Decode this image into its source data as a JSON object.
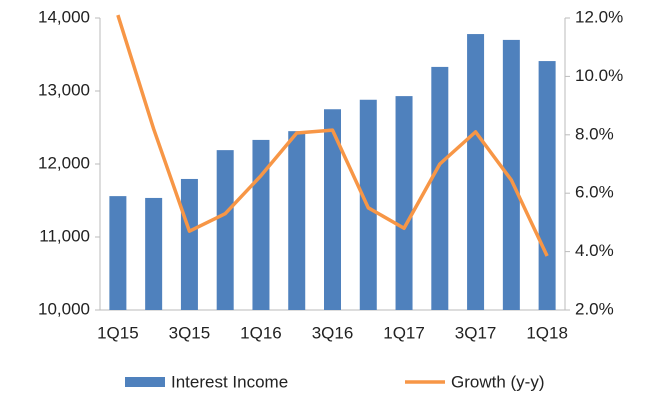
{
  "chart_data": {
    "type": "bar_line",
    "categories": [
      "1Q15",
      null,
      "3Q15",
      null,
      "1Q16",
      null,
      "3Q16",
      null,
      "1Q17",
      null,
      "3Q17",
      null,
      "1Q18"
    ],
    "series": [
      {
        "name": "Interest Income",
        "type": "bar",
        "color": "#4f81bd",
        "values": [
          11560,
          11535,
          11795,
          12190,
          12330,
          12450,
          12750,
          12880,
          12930,
          13330,
          13780,
          13700,
          13410
        ]
      },
      {
        "name": "Growth (y-y)",
        "type": "line",
        "axis": "y2",
        "color": "#f79646",
        "values": [
          12.1,
          8.2,
          4.7,
          5.3,
          6.6,
          8.06,
          8.16,
          5.5,
          4.8,
          7.0,
          8.1,
          6.45,
          3.85
        ]
      }
    ],
    "ylim": [
      10000,
      14000
    ],
    "yticks": [
      {
        "value": 10000,
        "label": "10,000"
      },
      {
        "value": 11000,
        "label": "11,000"
      },
      {
        "value": 12000,
        "label": "12,000"
      },
      {
        "value": 13000,
        "label": "13,000"
      },
      {
        "value": 14000,
        "label": "14,000"
      }
    ],
    "y2lim": [
      2,
      12
    ],
    "y2ticks": [
      {
        "value": 2,
        "label": "2.0%"
      },
      {
        "value": 4,
        "label": "4.0%"
      },
      {
        "value": 6,
        "label": "6.0%"
      },
      {
        "value": 8,
        "label": "8.0%"
      },
      {
        "value": 10,
        "label": "10.0%"
      },
      {
        "value": 12,
        "label": "12.0%"
      }
    ],
    "legend": "bottom"
  }
}
